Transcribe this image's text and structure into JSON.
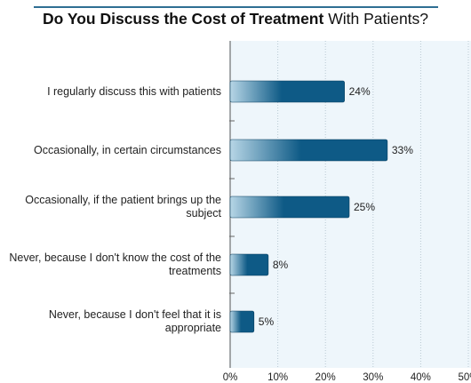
{
  "title": {
    "bold_part": "Do You Discuss the Cost of Treatment",
    "regular_part": "With Patients?"
  },
  "colors": {
    "bar_dark": "#0e5a86",
    "bar_light": "#b7d6e6",
    "plot_bg": "#eef6fb",
    "title_rule": "#2f6f93"
  },
  "chart_data": {
    "type": "bar",
    "orientation": "horizontal",
    "title": "Do You Discuss the Cost of Treatment With Patients?",
    "categories": [
      "I regularly discuss this with patients",
      "Occasionally, in certain circumstances",
      "Occasionally, if the patient brings up the subject",
      "Never, because I don't know the cost of the treatments",
      "Never, because I don't feel that it is appropriate"
    ],
    "values": [
      24,
      33,
      25,
      8,
      5
    ],
    "value_labels": [
      "24%",
      "33%",
      "25%",
      "8%",
      "5%"
    ],
    "xlim": [
      0,
      50
    ],
    "xticks": [
      0,
      10,
      20,
      30,
      40,
      50
    ],
    "xtick_labels": [
      "0%",
      "10%",
      "20%",
      "30%",
      "40%",
      "50%"
    ],
    "grid": "vertical dotted",
    "xlabel": "",
    "ylabel": ""
  }
}
